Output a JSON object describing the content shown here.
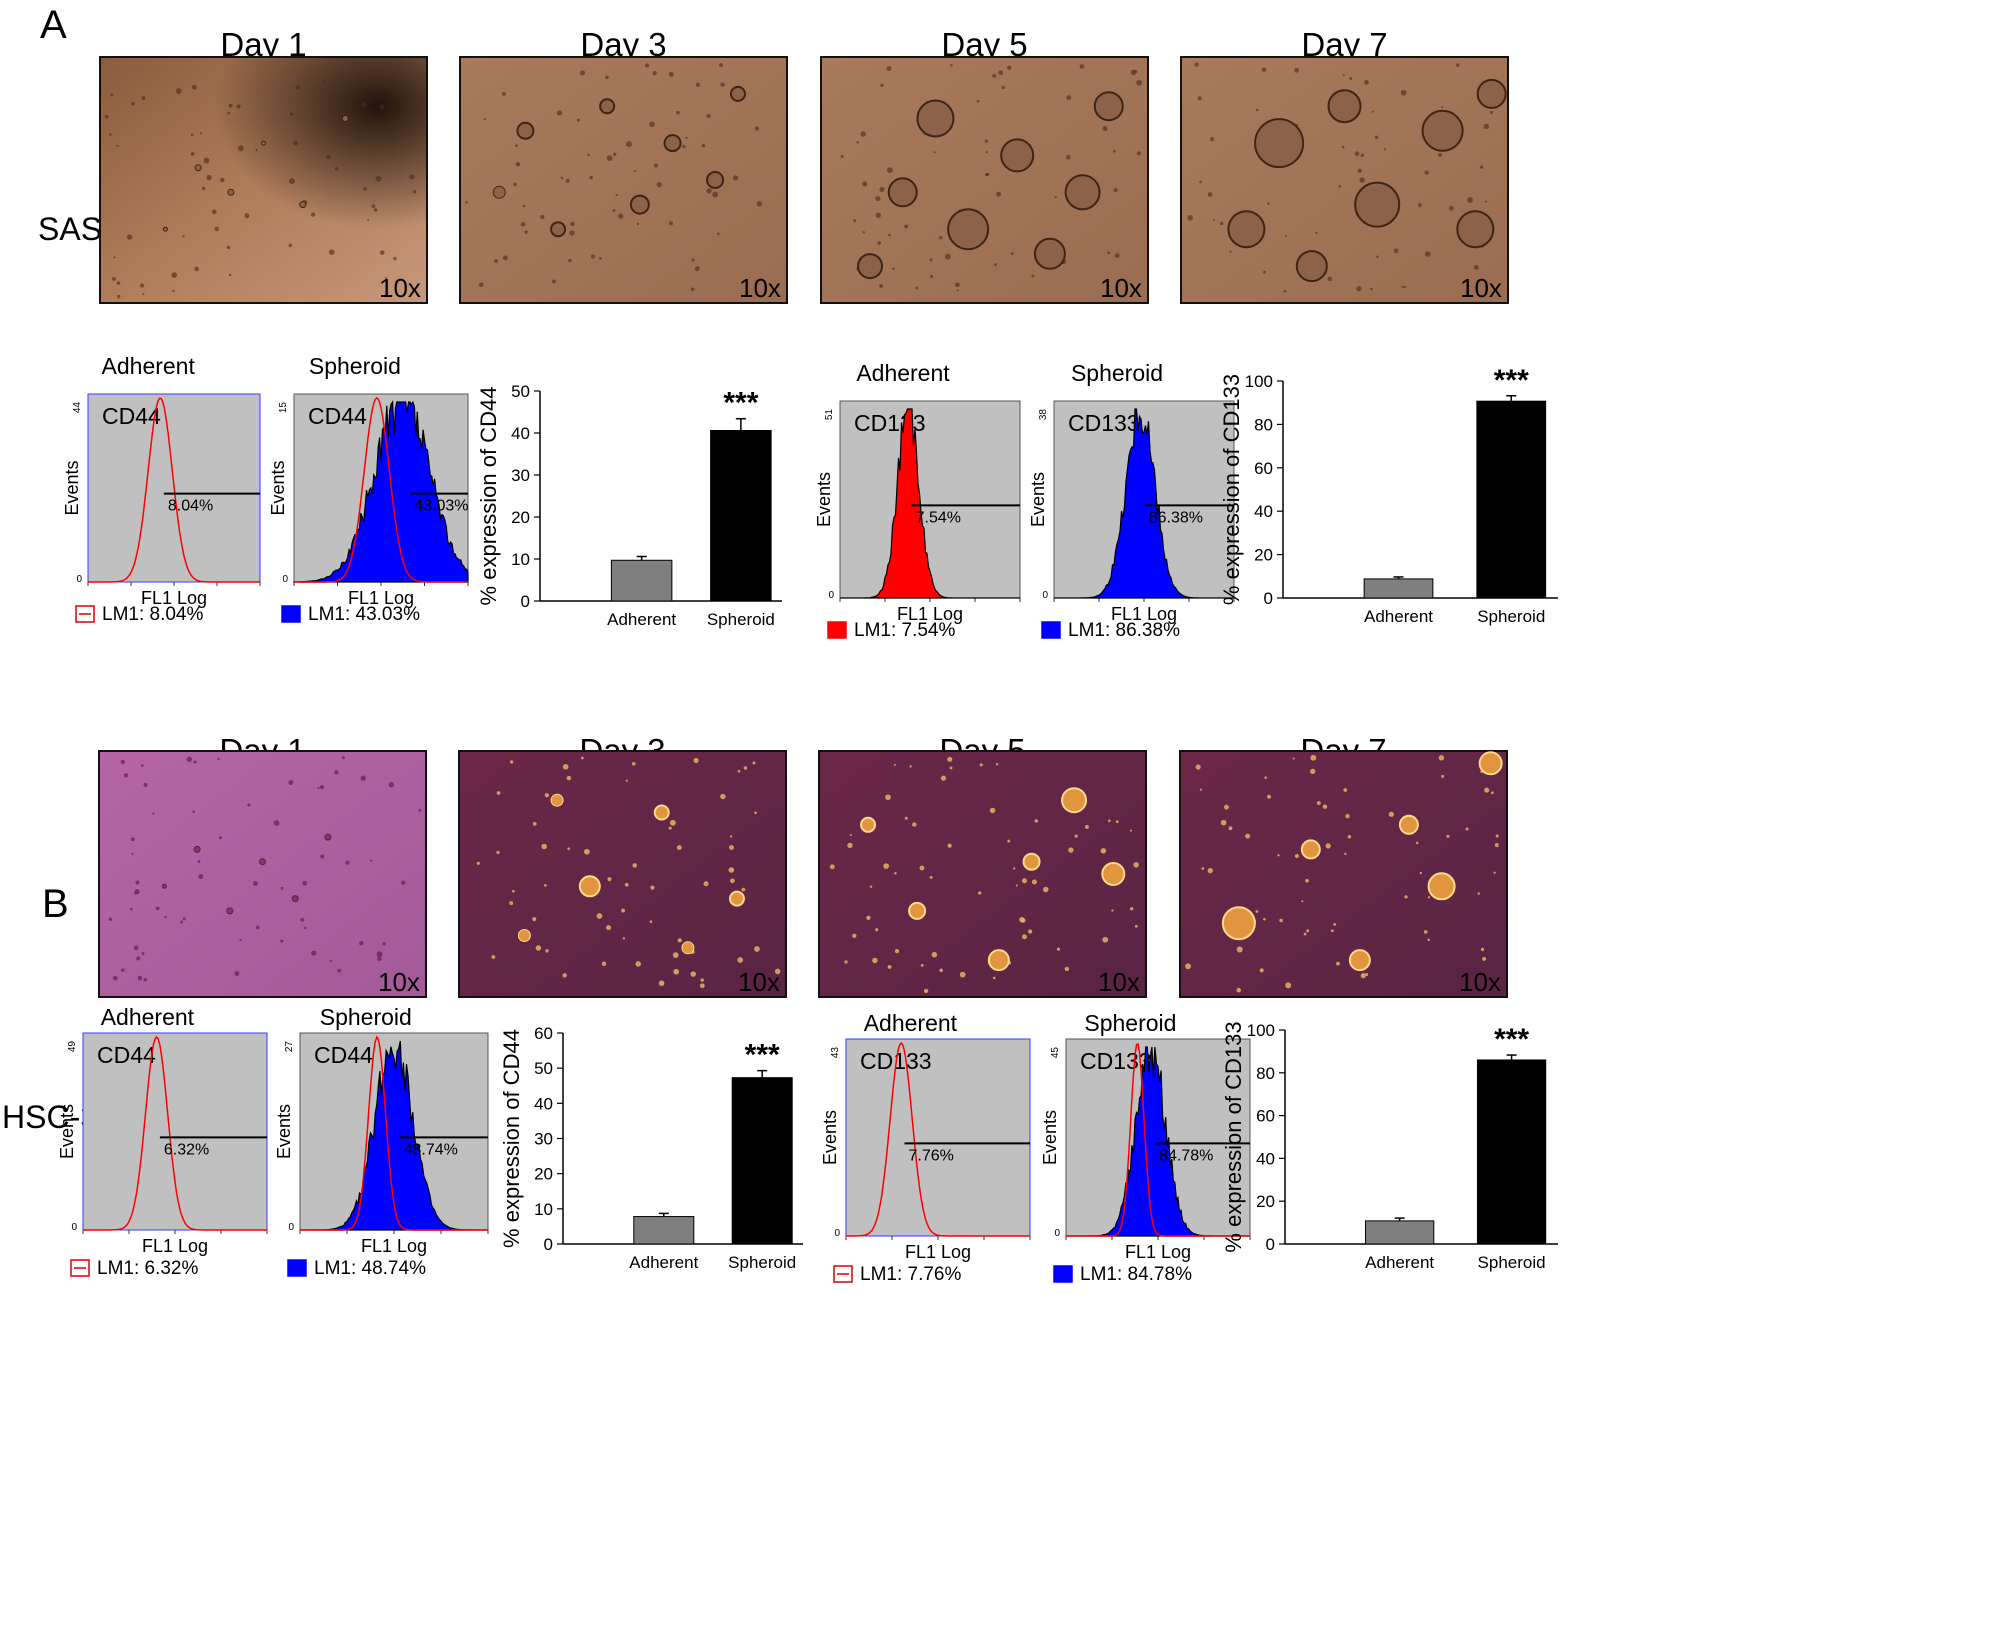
{
  "panels": [
    {
      "letter": "A",
      "cell_line": "SAS",
      "tint": "sas",
      "days": [
        {
          "label": "Day 1",
          "mag": "10x",
          "clusters": [
            [
              0.3,
              0.45,
              3
            ],
            [
              0.4,
              0.55,
              3
            ],
            [
              0.5,
              0.35,
              2
            ],
            [
              0.62,
              0.6,
              3
            ],
            [
              0.75,
              0.25,
              3
            ],
            [
              0.2,
              0.7,
              2
            ]
          ],
          "dark_spot": true
        },
        {
          "label": "Day 3",
          "mag": "10x",
          "clusters": [
            [
              0.2,
              0.3,
              8
            ],
            [
              0.45,
              0.2,
              7
            ],
            [
              0.55,
              0.6,
              9
            ],
            [
              0.78,
              0.5,
              8
            ],
            [
              0.3,
              0.7,
              7
            ],
            [
              0.85,
              0.15,
              7
            ],
            [
              0.65,
              0.35,
              8
            ],
            [
              0.12,
              0.55,
              6
            ]
          ],
          "dark_spot": false
        },
        {
          "label": "Day 5",
          "mag": "10x",
          "clusters": [
            [
              0.35,
              0.25,
              18
            ],
            [
              0.6,
              0.4,
              16
            ],
            [
              0.45,
              0.7,
              20
            ],
            [
              0.8,
              0.55,
              17
            ],
            [
              0.25,
              0.55,
              14
            ],
            [
              0.7,
              0.8,
              15
            ],
            [
              0.15,
              0.85,
              12
            ],
            [
              0.88,
              0.2,
              14
            ]
          ],
          "dark_spot": false
        },
        {
          "label": "Day 7",
          "mag": "10x",
          "clusters": [
            [
              0.3,
              0.35,
              24
            ],
            [
              0.6,
              0.6,
              22
            ],
            [
              0.8,
              0.3,
              20
            ],
            [
              0.2,
              0.7,
              18
            ],
            [
              0.5,
              0.2,
              16
            ],
            [
              0.4,
              0.85,
              15
            ],
            [
              0.9,
              0.7,
              18
            ],
            [
              0.95,
              0.15,
              14
            ]
          ],
          "dark_spot": false
        }
      ],
      "hists": [
        {
          "title": "Adherent",
          "marker": "CD44",
          "ymax_label": "44",
          "ylabel": "Events",
          "xlabel": "FL1 Log",
          "gate_label": "8.04%",
          "legend": "LM1:  8.04%",
          "legend_fill": "#ffffff",
          "legend_stroke": "#e00000",
          "fill": "none",
          "center": 0.42,
          "spread": 0.07,
          "overlay": false
        },
        {
          "title": "Spheroid",
          "marker": "CD44",
          "ymax_label": "15",
          "ylabel": "Events",
          "xlabel": "FL1 Log",
          "gate_label": "43.03%",
          "legend": "LM1:  43.03%",
          "legend_fill": "#0000ff",
          "legend_stroke": "#0000ff",
          "fill": "#0000ff",
          "center": 0.62,
          "spread": 0.16,
          "overlay": true
        }
      ],
      "hists2": [
        {
          "title": "Adherent",
          "marker": "CD133",
          "ymax_label": "51",
          "ylabel": "Events",
          "xlabel": "FL1 Log",
          "gate_label": "7.54%",
          "legend": "LM1:   7.54%",
          "legend_fill": "#ff0000",
          "legend_stroke": "#ff0000",
          "fill": "#ff0000",
          "center": 0.38,
          "spread": 0.06,
          "overlay": false
        },
        {
          "title": "Spheroid",
          "marker": "CD133",
          "ymax_label": "38",
          "ylabel": "Events",
          "xlabel": "FL1 Log",
          "gate_label": "86.38%",
          "legend": "LM1:  86.38%",
          "legend_fill": "#0000ff",
          "legend_stroke": "#0000ff",
          "fill": "#0000ff",
          "center": 0.48,
          "spread": 0.08,
          "overlay": false
        }
      ],
      "bars1": {
        "ylabel": "% expression of CD44",
        "ymax": 50,
        "ystep": 10,
        "categories": [
          "Adherent",
          "Spheroid"
        ],
        "values": [
          9.7,
          40.6
        ],
        "errors": [
          0.9,
          2.8
        ],
        "stars": "***"
      },
      "bars2": {
        "ylabel": "% expression of CD133",
        "ymax": 100,
        "ystep": 20,
        "categories": [
          "Adherent",
          "Spheroid"
        ],
        "values": [
          8.8,
          90.7
        ],
        "errors": [
          0.9,
          2.5
        ],
        "stars": "***"
      }
    },
    {
      "letter": "B",
      "cell_line": "HSC-3",
      "tint": "hsc",
      "days": [
        {
          "label": "Day 1",
          "mag": "10x",
          "clusters": [
            [
              0.3,
              0.4,
              3
            ],
            [
              0.5,
              0.45,
              3
            ],
            [
              0.6,
              0.6,
              3
            ],
            [
              0.4,
              0.65,
              3
            ],
            [
              0.7,
              0.35,
              3
            ],
            [
              0.2,
              0.55,
              2
            ]
          ],
          "dark_spot": false
        },
        {
          "label": "Day 3",
          "mag": "10x",
          "clusters": [
            [
              0.4,
              0.55,
              10
            ],
            [
              0.62,
              0.25,
              7
            ],
            [
              0.2,
              0.75,
              6
            ],
            [
              0.85,
              0.6,
              7
            ],
            [
              0.3,
              0.2,
              6
            ],
            [
              0.7,
              0.8,
              6
            ]
          ],
          "dark_spot": false
        },
        {
          "label": "Day 5",
          "mag": "10x",
          "clusters": [
            [
              0.78,
              0.2,
              12
            ],
            [
              0.9,
              0.5,
              11
            ],
            [
              0.55,
              0.85,
              10
            ],
            [
              0.3,
              0.65,
              8
            ],
            [
              0.15,
              0.3,
              7
            ],
            [
              0.65,
              0.45,
              8
            ]
          ],
          "dark_spot": false
        },
        {
          "label": "Day 7",
          "mag": "10x",
          "clusters": [
            [
              0.18,
              0.7,
              16
            ],
            [
              0.8,
              0.55,
              13
            ],
            [
              0.95,
              0.05,
              11
            ],
            [
              0.4,
              0.4,
              9
            ],
            [
              0.55,
              0.85,
              10
            ],
            [
              0.7,
              0.3,
              9
            ]
          ],
          "dark_spot": false
        }
      ],
      "hists": [
        {
          "title": "Adherent",
          "marker": "CD44",
          "ymax_label": "49",
          "ylabel": "Events",
          "xlabel": "FL1 Log",
          "gate_label": "6.32%",
          "legend": "LM1:  6.32%",
          "legend_fill": "#ffffff",
          "legend_stroke": "#e00000",
          "fill": "none",
          "center": 0.4,
          "spread": 0.06,
          "overlay": false
        },
        {
          "title": "Spheroid",
          "marker": "CD44",
          "ymax_label": "27",
          "ylabel": "Events",
          "xlabel": "FL1 Log",
          "gate_label": "48.74%",
          "legend": "LM1:  48.74%",
          "legend_fill": "#0000ff",
          "legend_stroke": "#0000ff",
          "fill": "#0000ff",
          "center": 0.5,
          "spread": 0.1,
          "overlay": true
        }
      ],
      "hists2": [
        {
          "title": "Adherent",
          "marker": "CD133",
          "ymax_label": "43",
          "ylabel": "Events",
          "xlabel": "FL1 Log",
          "gate_label": "7.76%",
          "legend": "LM1:   7.76%",
          "legend_fill": "#ffffff",
          "legend_stroke": "#e00000",
          "fill": "none",
          "center": 0.3,
          "spread": 0.06,
          "overlay": false
        },
        {
          "title": "Spheroid",
          "marker": "CD133",
          "ymax_label": "45",
          "ylabel": "Events",
          "xlabel": "FL1 Log",
          "gate_label": "84.78%",
          "legend": "LM1:  84.78%",
          "legend_fill": "#0000ff",
          "legend_stroke": "#0000ff",
          "fill": "#0000ff",
          "center": 0.46,
          "spread": 0.08,
          "overlay": true
        }
      ],
      "bars1": {
        "ylabel": "% expression of CD44",
        "ymax": 60,
        "ystep": 10,
        "categories": [
          "Adherent",
          "Spheroid"
        ],
        "values": [
          7.8,
          47.3
        ],
        "errors": [
          0.9,
          2.0
        ],
        "stars": "***"
      },
      "bars2": {
        "ylabel": "% expression of CD133",
        "ymax": 100,
        "ystep": 20,
        "categories": [
          "Adherent",
          "Spheroid"
        ],
        "values": [
          10.8,
          86.0
        ],
        "errors": [
          1.3,
          2.3
        ],
        "stars": "***"
      }
    }
  ],
  "chart_data": [
    {
      "type": "bar",
      "title": "",
      "ylabel": "% expression of CD44",
      "categories": [
        "Adherent",
        "Spheroid"
      ],
      "values": [
        9.7,
        40.6
      ],
      "ylim": [
        0,
        50
      ],
      "significance": "***"
    },
    {
      "type": "bar",
      "title": "",
      "ylabel": "% expression of CD133",
      "categories": [
        "Adherent",
        "Spheroid"
      ],
      "values": [
        8.8,
        90.7
      ],
      "ylim": [
        0,
        100
      ],
      "significance": "***"
    },
    {
      "type": "bar",
      "title": "",
      "ylabel": "% expression of CD44",
      "categories": [
        "Adherent",
        "Spheroid"
      ],
      "values": [
        7.8,
        47.3
      ],
      "ylim": [
        0,
        60
      ],
      "significance": "***"
    },
    {
      "type": "bar",
      "title": "",
      "ylabel": "% expression of CD133",
      "categories": [
        "Adherent",
        "Spheroid"
      ],
      "values": [
        10.8,
        86.0
      ],
      "ylim": [
        0,
        100
      ],
      "significance": "***"
    }
  ]
}
